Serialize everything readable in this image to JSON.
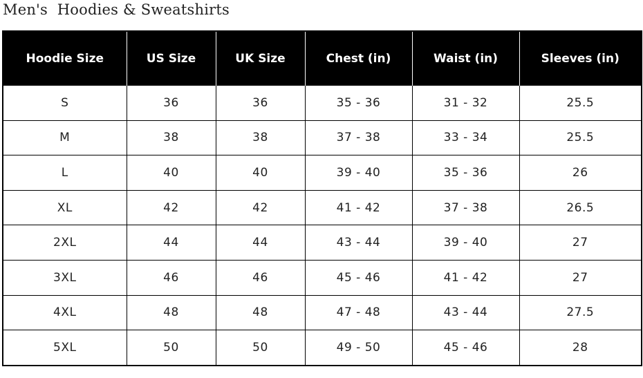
{
  "title": "Men's  Hoodies & Sweatshirts",
  "table": {
    "headers": [
      "Hoodie Size",
      "US Size",
      "UK Size",
      "Chest (in)",
      "Waist (in)",
      "Sleeves (in)"
    ],
    "rows": [
      [
        "S",
        "36",
        "36",
        "35 - 36",
        "31 - 32",
        "25.5"
      ],
      [
        "M",
        "38",
        "38",
        "37 - 38",
        "33 - 34",
        "25.5"
      ],
      [
        "L",
        "40",
        "40",
        "39 - 40",
        "35 - 36",
        "26"
      ],
      [
        "XL",
        "42",
        "42",
        "41 - 42",
        "37 - 38",
        "26.5"
      ],
      [
        "2XL",
        "44",
        "44",
        "43 - 44",
        "39 - 40",
        "27"
      ],
      [
        "3XL",
        "46",
        "46",
        "45 - 46",
        "41 - 42",
        "27"
      ],
      [
        "4XL",
        "48",
        "48",
        "47 - 48",
        "43 - 44",
        "27.5"
      ],
      [
        "5XL",
        "50",
        "50",
        "49 - 50",
        "45 - 46",
        "28"
      ]
    ]
  },
  "colors": {
    "header_bg": "#000000",
    "header_text": "#ffffff",
    "border": "#000000"
  }
}
